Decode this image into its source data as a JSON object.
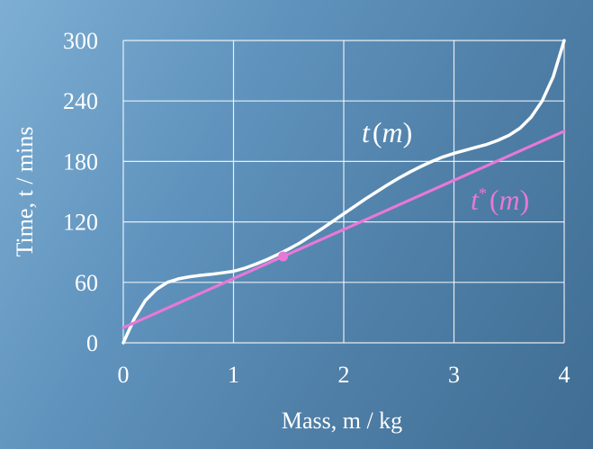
{
  "chart_data": {
    "type": "line",
    "xlabel": "Mass, m / kg",
    "ylabel": "Time, t / mins",
    "xlim": [
      0,
      4
    ],
    "ylim": [
      0,
      300
    ],
    "xticks": [
      0,
      1,
      2,
      3,
      4
    ],
    "yticks": [
      0,
      60,
      120,
      180,
      240,
      300
    ],
    "grid": true,
    "series": [
      {
        "name": "t(m)",
        "color": "#ffffff",
        "x": [
          0,
          0.1,
          0.2,
          0.3,
          0.4,
          0.5,
          0.6,
          0.7,
          0.8,
          0.9,
          1.0,
          1.1,
          1.2,
          1.3,
          1.4,
          1.5,
          1.6,
          1.7,
          1.8,
          1.9,
          2.0,
          2.1,
          2.2,
          2.3,
          2.4,
          2.5,
          2.6,
          2.7,
          2.8,
          2.9,
          3.0,
          3.1,
          3.2,
          3.3,
          3.4,
          3.5,
          3.6,
          3.7,
          3.8,
          3.9,
          4.0
        ],
        "y": [
          0,
          24,
          42,
          53,
          60,
          63.5,
          65.5,
          67,
          68,
          69.5,
          71,
          74,
          78,
          82.5,
          87.5,
          93,
          99,
          106,
          113,
          120.5,
          128,
          135.5,
          143,
          150,
          157,
          163.5,
          169.5,
          175,
          180,
          184.5,
          188,
          191,
          194,
          197,
          201,
          206,
          213,
          224,
          240,
          264,
          300
        ]
      },
      {
        "name": "t*(m)",
        "color": "#e878d6",
        "x": [
          0,
          4
        ],
        "y": [
          15,
          210
        ]
      }
    ],
    "point": {
      "x": 1.45,
      "y": 85.7,
      "color": "#e878d6"
    },
    "series_labels": {
      "t": {
        "main": "t",
        "arg": "m",
        "sup": ""
      },
      "tstar": {
        "main": "t",
        "arg": "m",
        "sup": "*"
      }
    }
  }
}
